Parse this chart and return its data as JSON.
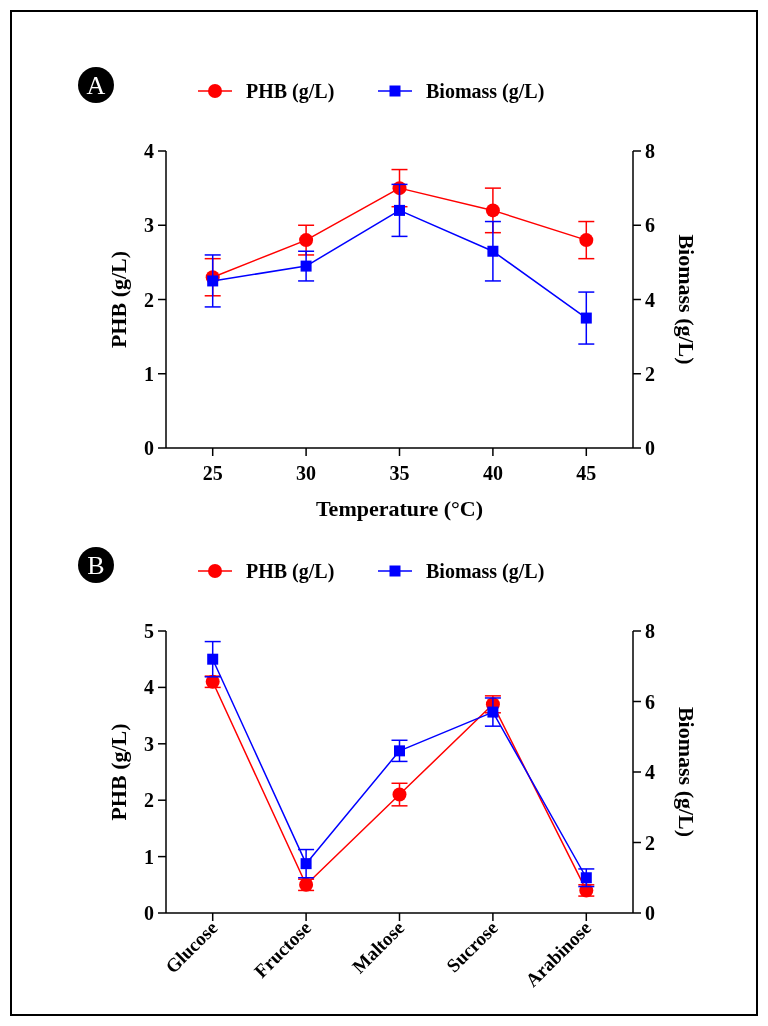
{
  "chart_data": [
    {
      "type": "line",
      "annotations": [
        "A"
      ],
      "xlabel": "Temperature (°C)",
      "ylabel": "PHB (g/L)",
      "y2label": "Biomass (g/L)",
      "x": [
        25,
        30,
        35,
        40,
        45
      ],
      "xlim": [
        22.5,
        47.5
      ],
      "xticks": [
        25,
        30,
        35,
        40,
        45
      ],
      "ylim": [
        0,
        4
      ],
      "yticks": [
        0,
        1,
        2,
        3,
        4
      ],
      "y2lim": [
        0,
        8
      ],
      "y2ticks": [
        0,
        2,
        4,
        6,
        8
      ],
      "legend": "top",
      "grid": false,
      "series": [
        {
          "name": "PHB (g/L)",
          "color": "#ff0000",
          "marker": "circle",
          "values": [
            2.3,
            2.8,
            3.5,
            3.2,
            2.8
          ],
          "errors": [
            0.25,
            0.2,
            0.25,
            0.3,
            0.25
          ]
        },
        {
          "name": "Biomass (g/L)",
          "color": "#0000ff",
          "marker": "square",
          "axis": "y2",
          "values": [
            4.5,
            4.9,
            6.4,
            5.3,
            3.5
          ],
          "errors": [
            0.7,
            0.4,
            0.7,
            0.8,
            0.7
          ]
        }
      ]
    },
    {
      "type": "line",
      "annotations": [
        "B"
      ],
      "ylabel": "PHB (g/L)",
      "y2label": "Biomass (g/L)",
      "categories": [
        "Glucose",
        "Fructose",
        "Maltose",
        "Sucrose",
        "Arabinose"
      ],
      "ylim": [
        0,
        5
      ],
      "yticks": [
        0,
        1,
        2,
        3,
        4,
        5
      ],
      "y2lim": [
        0,
        8
      ],
      "y2ticks": [
        0,
        2,
        4,
        6,
        8
      ],
      "legend": "top",
      "grid": false,
      "series": [
        {
          "name": "PHB (g/L)",
          "color": "#ff0000",
          "marker": "circle",
          "values": [
            4.1,
            0.5,
            2.1,
            3.7,
            0.4
          ],
          "errors": [
            0.1,
            0.1,
            0.2,
            0.15,
            0.1
          ]
        },
        {
          "name": "Biomass (g/L)",
          "color": "#0000ff",
          "marker": "square",
          "axis": "y2",
          "values": [
            7.2,
            1.4,
            4.6,
            5.7,
            1.0
          ],
          "errors": [
            0.5,
            0.4,
            0.3,
            0.4,
            0.25
          ]
        }
      ]
    }
  ]
}
